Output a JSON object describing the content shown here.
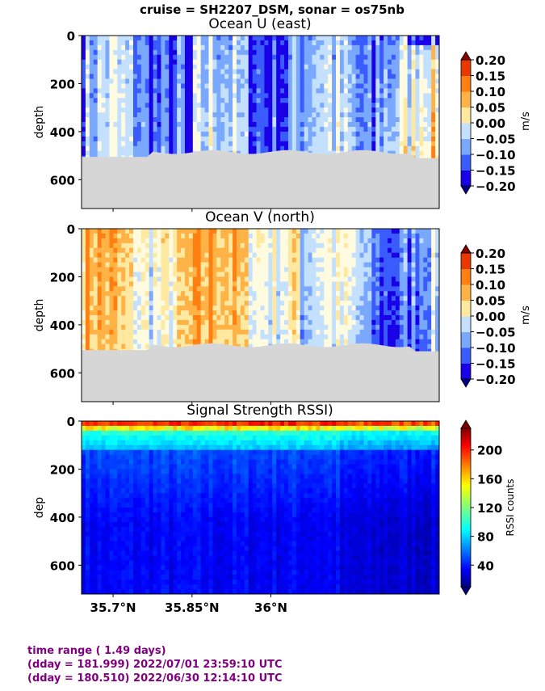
{
  "figure": {
    "suptitle": "cruise = SH2207_DSM,  sonar = os75nb"
  },
  "chart_data": [
    {
      "type": "heatmap",
      "title": "Ocean U (east)",
      "ylabel": "depth",
      "yticks": [
        0,
        200,
        400,
        600
      ],
      "ylim": [
        720,
        0
      ],
      "xlim": [
        35.64,
        36.32
      ],
      "colorbar": {
        "label": "m/s",
        "ticks": [
          "0.20",
          "0.15",
          "0.10",
          "0.05",
          "0.00",
          "−0.05",
          "−0.10",
          "−0.15",
          "−0.20"
        ],
        "range": [
          -0.2,
          0.2
        ],
        "colors": [
          "#1a00e6",
          "#3a5cff",
          "#7aa8ff",
          "#c4e0ff",
          "#fffbe0",
          "#ffe8a0",
          "#ffb347",
          "#ff7f11",
          "#e83800"
        ]
      },
      "bottom_depth_m": 510,
      "max_data_depth_m": 500
    },
    {
      "type": "heatmap",
      "title": "Ocean V (north)",
      "ylabel": "depth",
      "yticks": [
        0,
        200,
        400,
        600
      ],
      "ylim": [
        720,
        0
      ],
      "xlim": [
        35.64,
        36.32
      ],
      "colorbar": {
        "label": "m/s",
        "ticks": [
          "0.20",
          "0.15",
          "0.10",
          "0.05",
          "0.00",
          "−0.05",
          "−0.10",
          "−0.15",
          "−0.20"
        ],
        "range": [
          -0.2,
          0.2
        ],
        "colors": [
          "#1a00e6",
          "#3a5cff",
          "#7aa8ff",
          "#c4e0ff",
          "#fffbe0",
          "#ffe8a0",
          "#ffb347",
          "#ff7f11",
          "#e83800"
        ]
      },
      "bottom_depth_m": 510,
      "max_data_depth_m": 500
    },
    {
      "type": "heatmap",
      "title": "Signal Strength RSSI)",
      "ylabel": "dep",
      "yticks": [
        0,
        200,
        400,
        600
      ],
      "ylim": [
        720,
        0
      ],
      "xlim": [
        35.64,
        36.32
      ],
      "xticks": [
        {
          "value": 35.7,
          "label": "35.7°N"
        },
        {
          "value": 35.85,
          "label": "35.85°N"
        },
        {
          "value": 36.0,
          "label": "36°N"
        }
      ],
      "colorbar": {
        "label": "RSSI counts",
        "ticks": [
          "200",
          "160",
          "120",
          "80",
          "40"
        ],
        "tick_values": [
          200,
          160,
          120,
          80,
          40
        ],
        "range": [
          10,
          230
        ]
      }
    }
  ],
  "footer": {
    "line1": "time range ( 1.49 days)",
    "line2": "(dday = 181.999) 2022/07/01 23:59:10 UTC",
    "line3": "(dday = 180.510) 2022/06/30 12:14:10 UTC"
  }
}
